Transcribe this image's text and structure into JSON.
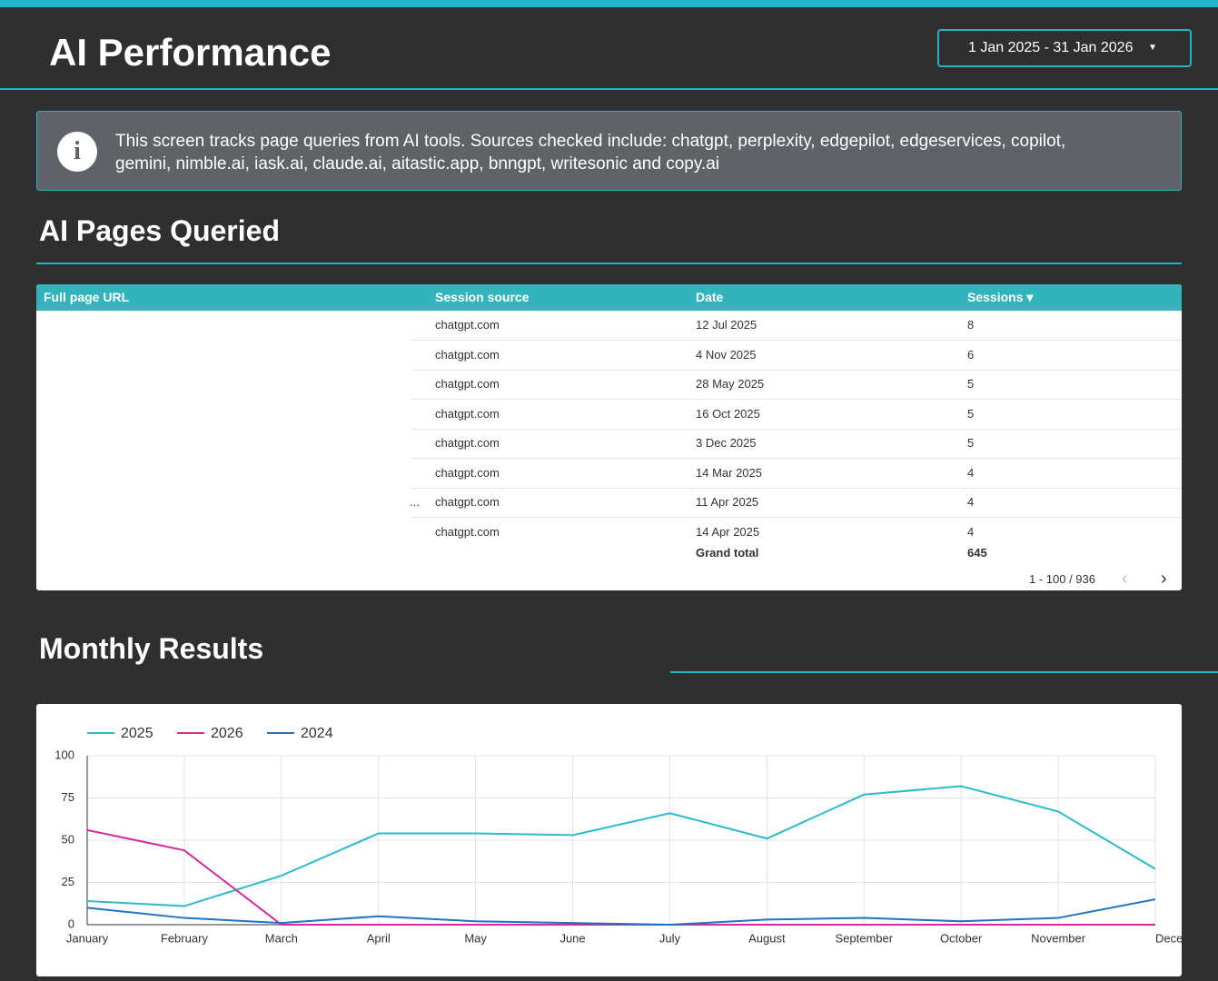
{
  "header": {
    "title": "AI Performance",
    "date_range": "1 Jan 2025 - 31 Jan 2026"
  },
  "info": {
    "text": "This screen tracks page queries from AI tools. Sources checked include: chatgpt, perplexity, edgepilot, edgeservices, copilot, gemini, nimble.ai, iask.ai, claude.ai, aitastic.app, bnngpt, writesonic and  copy.ai"
  },
  "table": {
    "title": "AI Pages Queried",
    "columns": [
      "Full page URL",
      "Session source",
      "Date",
      "Sessions"
    ],
    "rows": [
      {
        "source": "chatgpt.com",
        "date": "12 Jul 2025",
        "sessions": 8
      },
      {
        "source": "chatgpt.com",
        "date": "4 Nov 2025",
        "sessions": 6
      },
      {
        "source": "chatgpt.com",
        "date": "28 May 2025",
        "sessions": 5
      },
      {
        "source": "chatgpt.com",
        "date": "16 Oct 2025",
        "sessions": 5
      },
      {
        "source": "chatgpt.com",
        "date": "3 Dec 2025",
        "sessions": 5
      },
      {
        "source": "chatgpt.com",
        "date": "14 Mar 2025",
        "sessions": 4
      },
      {
        "url": "...",
        "source": "chatgpt.com",
        "date": "11 Apr 2025",
        "sessions": 4
      },
      {
        "source": "chatgpt.com",
        "date": "14 Apr 2025",
        "sessions": 4
      }
    ],
    "grand_total_label": "Grand total",
    "grand_total": 645,
    "pagination": "1 - 100 / 936"
  },
  "chart_data": {
    "type": "line",
    "title": "Monthly Results",
    "categories": [
      "January",
      "February",
      "March",
      "April",
      "May",
      "June",
      "July",
      "August",
      "September",
      "October",
      "November",
      "Decem..."
    ],
    "series": [
      {
        "name": "2025",
        "color": "#2bbcc8",
        "values": [
          14,
          11,
          29,
          54,
          54,
          53,
          66,
          51,
          77,
          82,
          67,
          33
        ]
      },
      {
        "name": "2026",
        "color": "#d62a9c",
        "values": [
          56,
          44,
          0,
          0,
          0,
          0,
          0,
          0,
          0,
          0,
          0,
          0
        ]
      },
      {
        "name": "2024",
        "color": "#1f73c0",
        "values": [
          10,
          4,
          1,
          5,
          2,
          1,
          0,
          3,
          4,
          2,
          4,
          15
        ]
      }
    ],
    "ylim": [
      0,
      100
    ],
    "yticks": [
      0,
      25,
      50,
      75,
      100
    ],
    "grid": true
  }
}
